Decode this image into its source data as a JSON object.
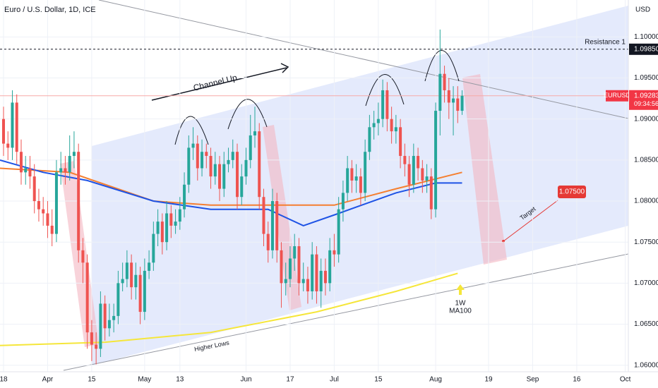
{
  "chart_data": {
    "type": "candlestick",
    "title": "Euro / U.S. Dollar, 1D, ICE",
    "currency": "USD",
    "symbol": "EURUSD",
    "countdown": "09:34:56",
    "up_color": "#26a69a",
    "down_color": "#ef5350",
    "grid": true,
    "xlim": [
      -0.8,
      141.7
    ],
    "ylim": [
      1.0592,
      1.1045
    ],
    "xticks": [
      {
        "value": 0,
        "label": "18"
      },
      {
        "value": 10,
        "label": "Apr"
      },
      {
        "value": 20,
        "label": "15"
      },
      {
        "value": 32,
        "label": "May"
      },
      {
        "value": 40,
        "label": "13"
      },
      {
        "value": 55,
        "label": "Jun"
      },
      {
        "value": 65,
        "label": "17"
      },
      {
        "value": 75,
        "label": "Jul"
      },
      {
        "value": 85,
        "label": "15"
      },
      {
        "value": 98,
        "label": "Aug"
      },
      {
        "value": 110,
        "label": "19"
      },
      {
        "value": 120,
        "label": "Sep"
      },
      {
        "value": 130,
        "label": "16"
      },
      {
        "value": 141,
        "label": "Oct"
      }
    ],
    "yticks": [
      {
        "value": 1.06,
        "label": "1.06000"
      },
      {
        "value": 1.065,
        "label": "1.06500"
      },
      {
        "value": 1.07,
        "label": "1.07000"
      },
      {
        "value": 1.075,
        "label": "1.07500"
      },
      {
        "value": 1.08,
        "label": "1.08000"
      },
      {
        "value": 1.085,
        "label": "1.08500"
      },
      {
        "value": 1.09,
        "label": "1.09000"
      },
      {
        "value": 1.095,
        "label": "1.09500"
      },
      {
        "value": 1.1,
        "label": "1.10000"
      }
    ],
    "ohlc": [
      [
        1.09,
        1.0915,
        1.0855,
        1.087
      ],
      [
        1.087,
        1.0885,
        1.085,
        1.0865
      ],
      [
        1.0865,
        1.0935,
        1.085,
        1.092
      ],
      [
        1.092,
        1.093,
        1.0845,
        1.086
      ],
      [
        1.086,
        1.0875,
        1.082,
        1.0835
      ],
      [
        1.0835,
        1.0855,
        1.082,
        1.084
      ],
      [
        1.084,
        1.0855,
        1.0815,
        1.083
      ],
      [
        1.083,
        1.0845,
        1.0785,
        1.08
      ],
      [
        1.08,
        1.0815,
        1.0775,
        1.079
      ],
      [
        1.079,
        1.0805,
        1.077,
        1.0785
      ],
      [
        1.0785,
        1.08,
        1.0755,
        1.077
      ],
      [
        1.077,
        1.079,
        1.0745,
        1.076
      ],
      [
        1.076,
        1.085,
        1.075,
        1.0835
      ],
      [
        1.0835,
        1.086,
        1.082,
        1.084
      ],
      [
        1.084,
        1.0855,
        1.082,
        1.0835
      ],
      [
        1.0835,
        1.088,
        1.0825,
        1.0855
      ],
      [
        1.0855,
        1.0885,
        1.084,
        1.086
      ],
      [
        1.086,
        1.087,
        1.0725,
        1.074
      ],
      [
        1.074,
        1.0755,
        1.07,
        1.0725
      ],
      [
        1.0725,
        1.0735,
        1.062,
        1.064
      ],
      [
        1.064,
        1.0655,
        1.0605,
        1.0625
      ],
      [
        1.0625,
        1.064,
        1.0601,
        1.062
      ],
      [
        1.062,
        1.069,
        1.061,
        1.0675
      ],
      [
        1.0675,
        1.0685,
        1.063,
        1.0645
      ],
      [
        1.0645,
        1.0675,
        1.0635,
        1.0655
      ],
      [
        1.0655,
        1.0675,
        1.064,
        1.066
      ],
      [
        1.066,
        1.0715,
        1.065,
        1.07
      ],
      [
        1.07,
        1.0725,
        1.069,
        1.0705
      ],
      [
        1.0705,
        1.074,
        1.0695,
        1.0725
      ],
      [
        1.0725,
        1.0735,
        1.068,
        1.0695
      ],
      [
        1.0695,
        1.0725,
        1.068,
        1.071
      ],
      [
        1.071,
        1.072,
        1.065,
        1.0665
      ],
      [
        1.0665,
        1.073,
        1.0655,
        1.0715
      ],
      [
        1.0715,
        1.074,
        1.0705,
        1.0725
      ],
      [
        1.0725,
        1.0775,
        1.0715,
        1.076
      ],
      [
        1.076,
        1.079,
        1.0745,
        1.0775
      ],
      [
        1.0775,
        1.0785,
        1.0735,
        1.075
      ],
      [
        1.075,
        1.08,
        1.074,
        1.0785
      ],
      [
        1.0785,
        1.0795,
        1.0755,
        1.077
      ],
      [
        1.077,
        1.079,
        1.076,
        1.0775
      ],
      [
        1.0775,
        1.0805,
        1.0765,
        1.079
      ],
      [
        1.079,
        1.0835,
        1.078,
        1.082
      ],
      [
        1.082,
        1.088,
        1.081,
        1.0865
      ],
      [
        1.0865,
        1.089,
        1.085,
        1.087
      ],
      [
        1.087,
        1.088,
        1.0825,
        1.084
      ],
      [
        1.084,
        1.0875,
        1.083,
        1.086
      ],
      [
        1.086,
        1.087,
        1.084,
        1.0855
      ],
      [
        1.0855,
        1.0865,
        1.0815,
        1.083
      ],
      [
        1.083,
        1.086,
        1.082,
        1.0845
      ],
      [
        1.0845,
        1.0855,
        1.08,
        1.0815
      ],
      [
        1.0815,
        1.086,
        1.0805,
        1.0845
      ],
      [
        1.0845,
        1.0865,
        1.0835,
        1.085
      ],
      [
        1.085,
        1.0875,
        1.084,
        1.086
      ],
      [
        1.086,
        1.087,
        1.079,
        1.0805
      ],
      [
        1.0805,
        1.0845,
        1.0795,
        1.083
      ],
      [
        1.083,
        1.0865,
        1.082,
        1.085
      ],
      [
        1.085,
        1.0905,
        1.084,
        1.088
      ],
      [
        1.088,
        1.0915,
        1.0865,
        1.0885
      ],
      [
        1.0885,
        1.0895,
        1.079,
        1.0805
      ],
      [
        1.0805,
        1.0815,
        1.0745,
        1.076
      ],
      [
        1.076,
        1.0775,
        1.0725,
        1.074
      ],
      [
        1.074,
        1.0815,
        1.073,
        1.08
      ],
      [
        1.08,
        1.081,
        1.0725,
        1.074
      ],
      [
        1.074,
        1.075,
        1.067,
        1.07
      ],
      [
        1.07,
        1.0725,
        1.0685,
        1.0705
      ],
      [
        1.0705,
        1.0745,
        1.0695,
        1.073
      ],
      [
        1.073,
        1.076,
        1.0715,
        1.0745
      ],
      [
        1.0745,
        1.0755,
        1.0685,
        1.07
      ],
      [
        1.07,
        1.0725,
        1.069,
        1.0705
      ],
      [
        1.0705,
        1.072,
        1.0675,
        1.069
      ],
      [
        1.069,
        1.075,
        1.068,
        1.0735
      ],
      [
        1.0735,
        1.0745,
        1.0675,
        1.069
      ],
      [
        1.069,
        1.073,
        1.067,
        1.0715
      ],
      [
        1.0715,
        1.073,
        1.0685,
        1.07
      ],
      [
        1.07,
        1.0755,
        1.069,
        1.074
      ],
      [
        1.074,
        1.076,
        1.072,
        1.0735
      ],
      [
        1.0735,
        1.0805,
        1.0725,
        1.079
      ],
      [
        1.079,
        1.0825,
        1.0775,
        1.081
      ],
      [
        1.081,
        1.0855,
        1.08,
        1.084
      ],
      [
        1.084,
        1.085,
        1.081,
        1.0825
      ],
      [
        1.0825,
        1.0845,
        1.081,
        1.083
      ],
      [
        1.083,
        1.084,
        1.0795,
        1.081
      ],
      [
        1.081,
        1.0875,
        1.08,
        1.086
      ],
      [
        1.086,
        1.0905,
        1.085,
        1.089
      ],
      [
        1.089,
        1.091,
        1.0875,
        1.0895
      ],
      [
        1.0895,
        1.092,
        1.088,
        1.09
      ],
      [
        1.09,
        1.0948,
        1.089,
        1.0935
      ],
      [
        1.0935,
        1.0945,
        1.0885,
        1.09
      ],
      [
        1.09,
        1.0915,
        1.087,
        1.0885
      ],
      [
        1.0885,
        1.0905,
        1.087,
        1.089
      ],
      [
        1.089,
        1.09,
        1.084,
        1.0855
      ],
      [
        1.0855,
        1.087,
        1.083,
        1.0845
      ],
      [
        1.0845,
        1.0855,
        1.0805,
        1.082
      ],
      [
        1.082,
        1.087,
        1.081,
        1.0855
      ],
      [
        1.0855,
        1.0865,
        1.0825,
        1.084
      ],
      [
        1.084,
        1.085,
        1.081,
        1.0825
      ],
      [
        1.0825,
        1.0845,
        1.081,
        1.083
      ],
      [
        1.083,
        1.084,
        1.0778,
        1.079
      ],
      [
        1.079,
        1.092,
        1.078,
        1.091
      ],
      [
        1.091,
        1.1009,
        1.088,
        1.0955
      ],
      [
        1.0955,
        1.0965,
        1.092,
        1.0935
      ],
      [
        1.0935,
        1.095,
        1.09,
        1.092
      ],
      [
        1.092,
        1.094,
        1.088,
        1.0925
      ],
      [
        1.0925,
        1.094,
        1.0895,
        1.091
      ],
      [
        1.091,
        1.0935,
        1.0905,
        1.09283
      ]
    ],
    "lines": [
      {
        "color": "#f5e63a",
        "x": [
          -0.8,
          23,
          47,
          71,
          89,
          103
        ],
        "values": [
          1.0624,
          1.0628,
          1.064,
          1.0665,
          1.069,
          1.0712
        ]
      },
      {
        "color": "#f57f30",
        "x": [
          -0.8,
          15,
          34,
          47,
          75,
          89,
          104
        ],
        "values": [
          1.084,
          1.0835,
          1.08,
          1.0795,
          1.0795,
          1.0815,
          1.0835
        ]
      },
      {
        "color": "#1e53e5",
        "x": [
          -0.8,
          9,
          19,
          34,
          47,
          60,
          68,
          76,
          89,
          98,
          104
        ],
        "values": [
          1.085,
          1.0835,
          1.0825,
          1.08,
          1.079,
          1.079,
          1.077,
          1.0785,
          1.081,
          1.0822,
          1.0822
        ]
      }
    ],
    "last_price": {
      "value": 1.09283,
      "label": "1.09283"
    },
    "resistance": {
      "name": "Resistance 1",
      "value": 1.0985,
      "label": "1.09850"
    },
    "target": {
      "name": "Target",
      "value": 1.075,
      "label": "1.07500"
    },
    "annotations": [
      "Channel Up",
      "Higher Lows",
      "1W",
      "MA100"
    ]
  }
}
